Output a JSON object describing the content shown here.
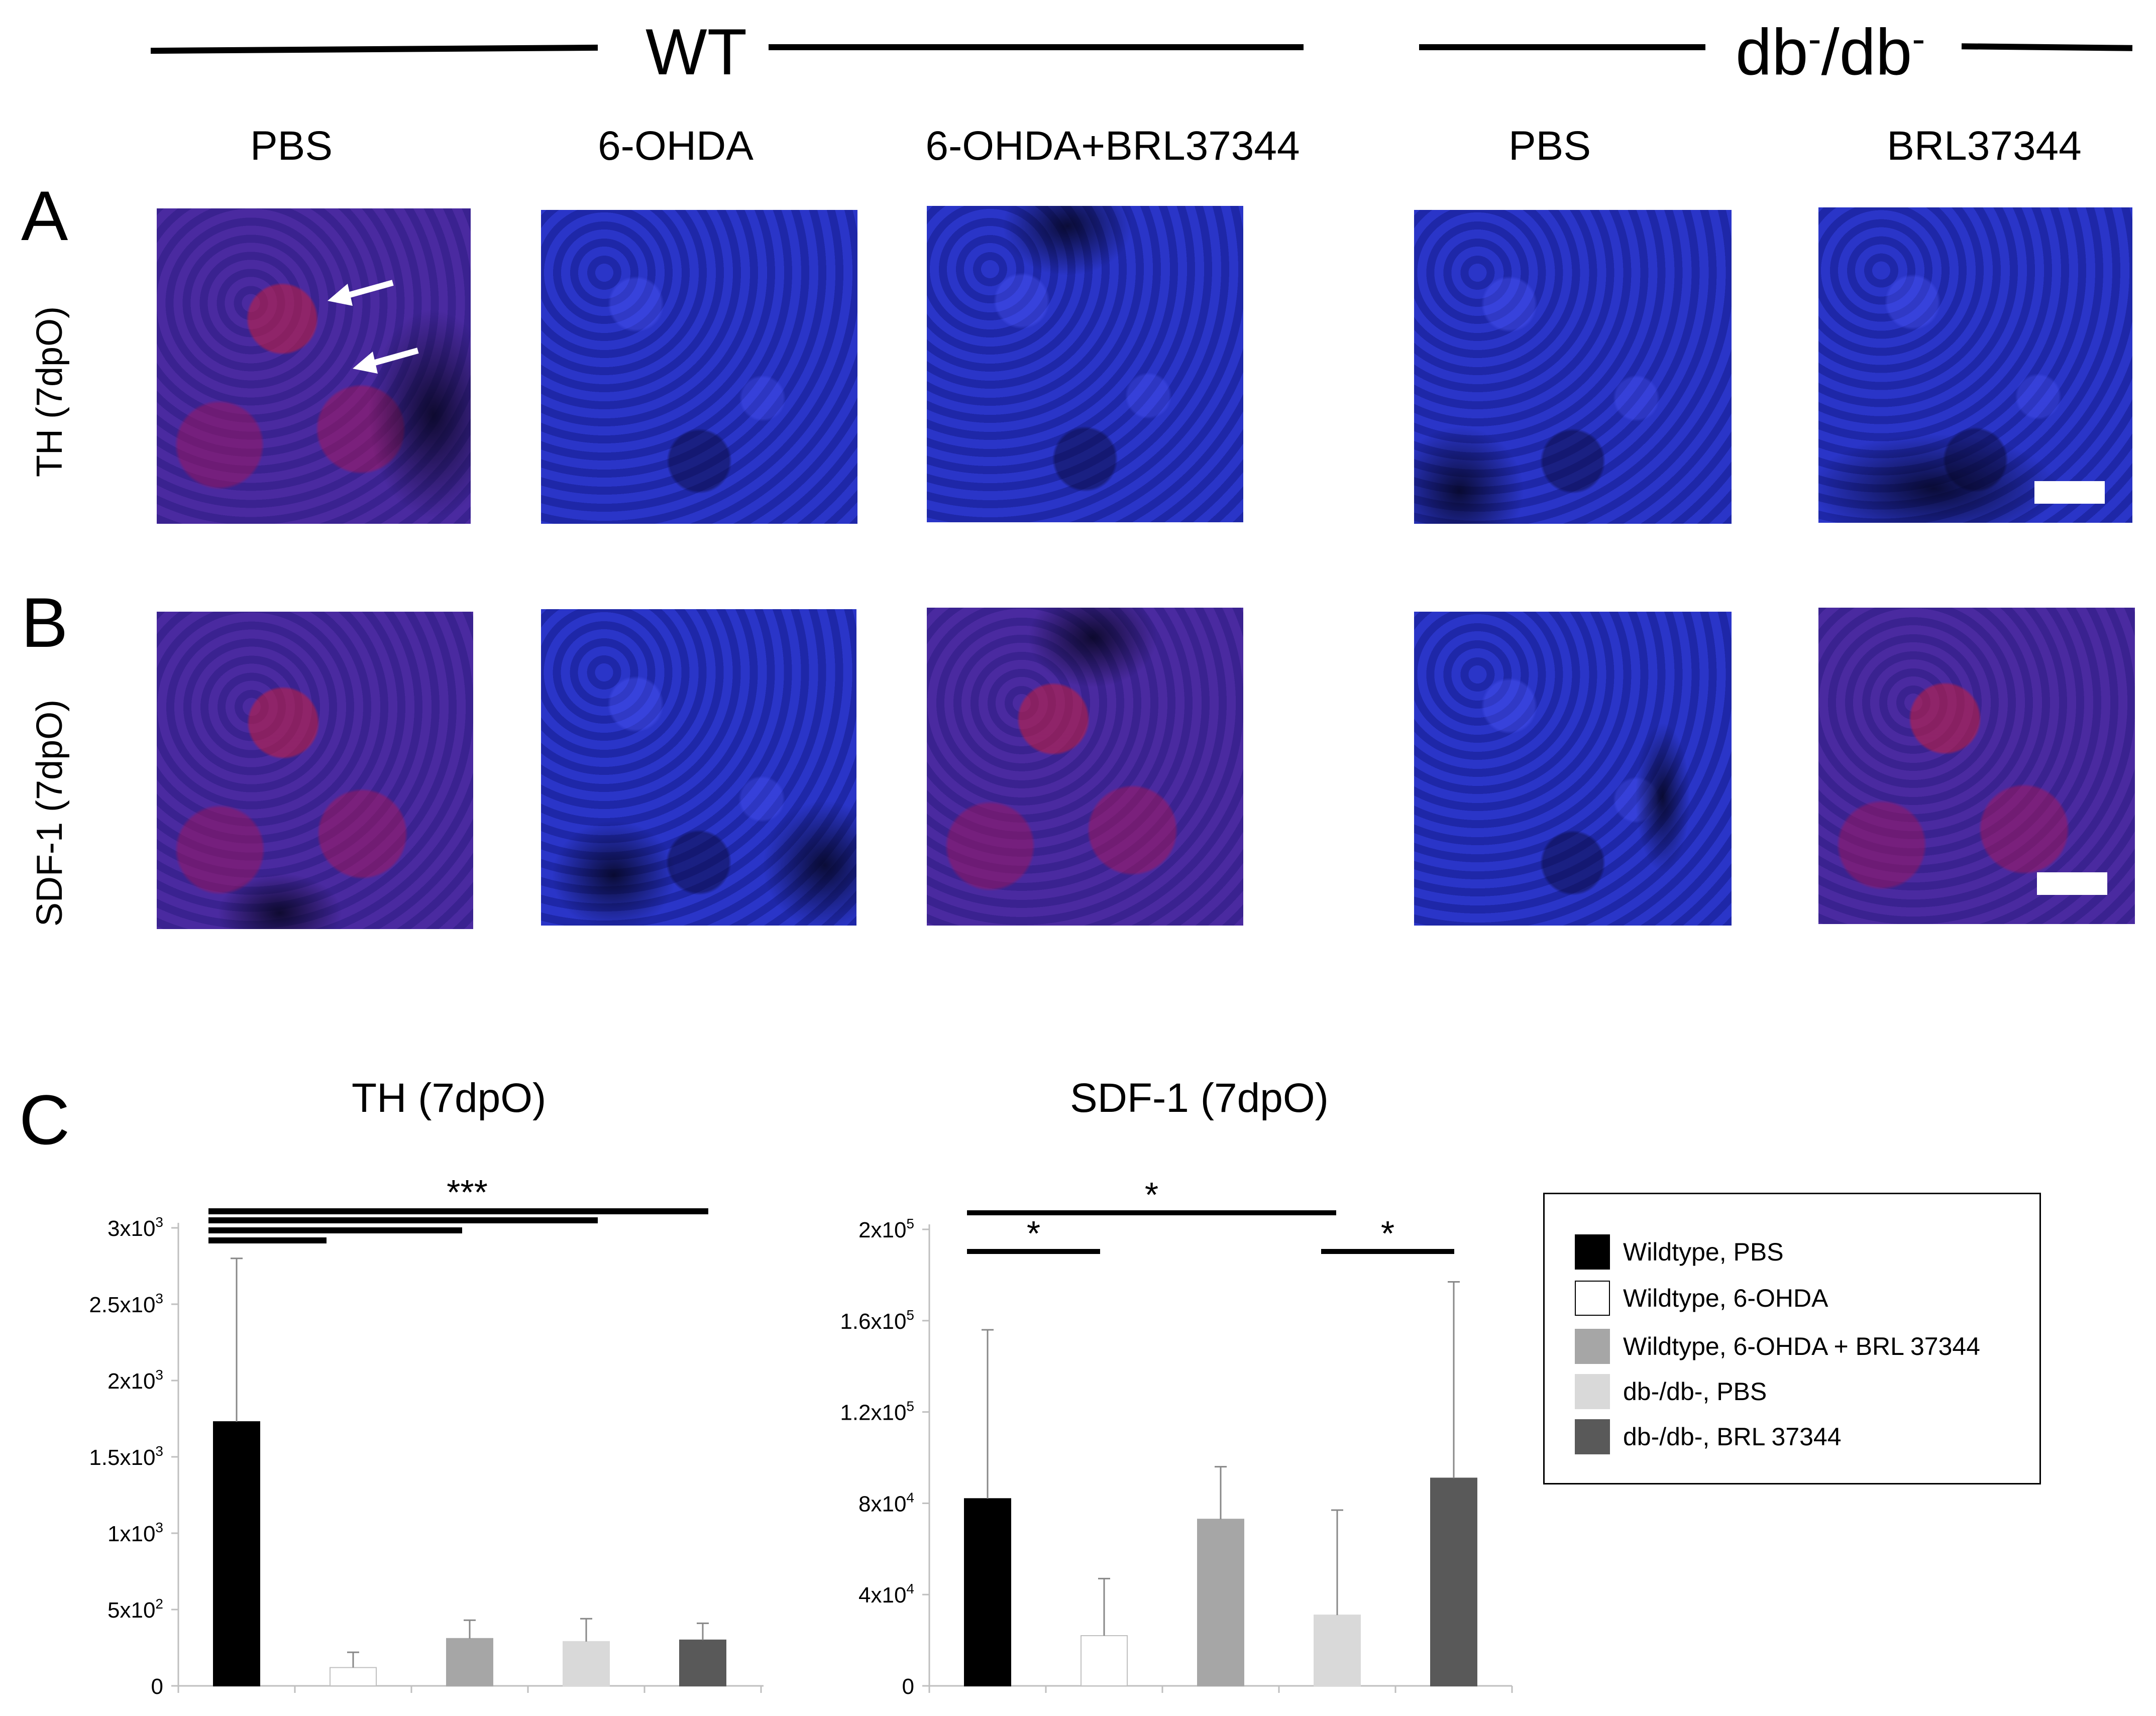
{
  "groups": {
    "wt": "WT",
    "db_base": "db",
    "db_sup1": "-",
    "db_mid": "/db",
    "db_sup2": "-"
  },
  "columns": [
    "PBS",
    "6-OHDA",
    "6-OHDA+BRL37344",
    "PBS",
    "BRL37344"
  ],
  "panels": {
    "a": "A",
    "b": "B",
    "c": "C"
  },
  "row_labels": {
    "a": "TH (7dpO)",
    "b": "SDF-1 (7dpO)"
  },
  "legend": [
    {
      "label": "Wildtype,  PBS",
      "color": "#000000"
    },
    {
      "label": "Wildtype,  6-OHDA",
      "color": "#ffffff"
    },
    {
      "label": "Wildtype,  6-OHDA + BRL 37344",
      "color": "#a6a6a6"
    },
    {
      "label": "db-/db-,  PBS",
      "color": "#d9d9d9"
    },
    {
      "label": "db-/db-, BRL 37344",
      "color": "#595959"
    }
  ],
  "chart_data": [
    {
      "type": "bar",
      "title": "TH (7dpO)",
      "categories": [
        "Wildtype, PBS",
        "Wildtype, 6-OHDA",
        "Wildtype, 6-OHDA + BRL 37344",
        "db-/db-, PBS",
        "db-/db-, BRL 37344"
      ],
      "values": [
        1730,
        120,
        310,
        290,
        300
      ],
      "errors": [
        1070,
        100,
        120,
        150,
        110
      ],
      "ylim": [
        0,
        3000
      ],
      "yticks": [
        0,
        500,
        1000,
        1500,
        2000,
        2500,
        3000
      ],
      "ytick_labels": [
        {
          "base": "0",
          "exp": ""
        },
        {
          "base": "5x10",
          "exp": "2"
        },
        {
          "base": "1x10",
          "exp": "3"
        },
        {
          "base": "1.5x10",
          "exp": "3"
        },
        {
          "base": "2x10",
          "exp": "3"
        },
        {
          "base": "2.5x10",
          "exp": "3"
        },
        {
          "base": "3x10",
          "exp": "3"
        }
      ],
      "significance": [
        {
          "from": 0,
          "to": 1
        },
        {
          "from": 0,
          "to": 2
        },
        {
          "from": 0,
          "to": 3
        },
        {
          "from": 0,
          "to": 4
        }
      ],
      "sig_label": "***"
    },
    {
      "type": "bar",
      "title": "SDF-1 (7dpO)",
      "categories": [
        "Wildtype, PBS",
        "Wildtype, 6-OHDA",
        "Wildtype, 6-OHDA + BRL 37344",
        "db-/db-, PBS",
        "db-/db-, BRL 37344"
      ],
      "values": [
        82000,
        22000,
        73000,
        31000,
        91000
      ],
      "errors": [
        74000,
        25000,
        23000,
        46000,
        86000
      ],
      "ylim": [
        0,
        200000
      ],
      "yticks": [
        0,
        40000,
        80000,
        120000,
        160000,
        200000
      ],
      "ytick_labels": [
        {
          "base": "0",
          "exp": ""
        },
        {
          "base": "4x10",
          "exp": "4"
        },
        {
          "base": "8x10",
          "exp": "4"
        },
        {
          "base": "1.2x10",
          "exp": "5"
        },
        {
          "base": "1.6x10",
          "exp": "5"
        },
        {
          "base": "2x10",
          "exp": "5"
        }
      ],
      "significance": [
        {
          "from": 0,
          "to": 1,
          "label": "*"
        },
        {
          "from": 0,
          "to": 3,
          "label": "*"
        },
        {
          "from": 3,
          "to": 4,
          "label": "*"
        }
      ]
    }
  ]
}
